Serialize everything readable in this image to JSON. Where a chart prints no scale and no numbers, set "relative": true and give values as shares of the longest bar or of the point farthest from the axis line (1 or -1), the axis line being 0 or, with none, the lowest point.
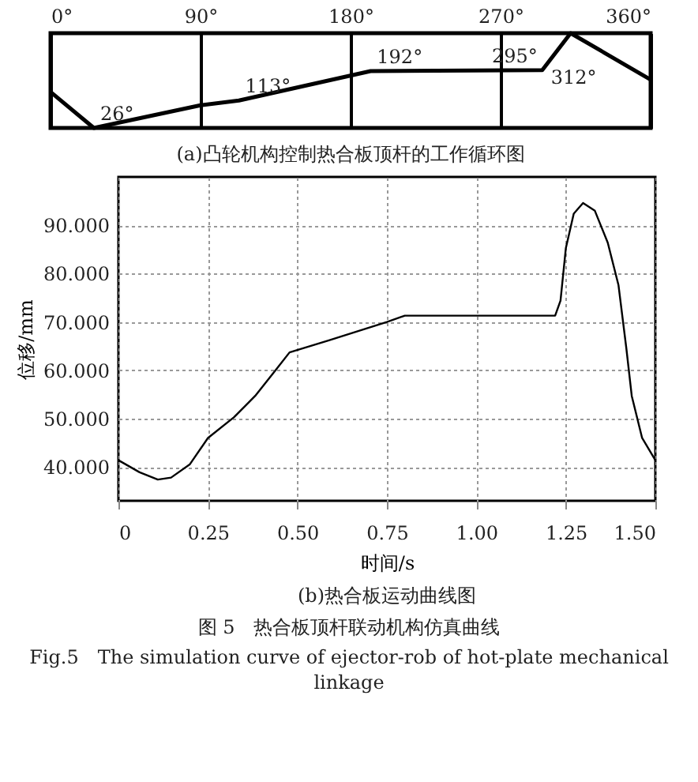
{
  "chart_data": [
    {
      "type": "line",
      "title": "(a)凸轮机构控制热合板顶杆的工作循环图",
      "relative": true,
      "x": [
        0,
        26,
        90,
        113,
        192,
        295,
        312,
        360
      ],
      "values": [
        0.38,
        0,
        0.24,
        0.29,
        0.6,
        0.61,
        1,
        0.51
      ],
      "color": "#000000",
      "xlim": [
        0,
        360
      ],
      "xticks": [
        {
          "value": 0,
          "label": "0°"
        },
        {
          "value": 90,
          "label": "90°"
        },
        {
          "value": 180,
          "label": "180°"
        },
        {
          "value": 270,
          "label": "270°"
        },
        {
          "value": 360,
          "label": "360°"
        }
      ],
      "grid": "x",
      "marker": "none",
      "line_style": "solid",
      "annotations": [
        {
          "text": "26°",
          "x": 26,
          "y": 0
        },
        {
          "text": "113°",
          "x": 113,
          "y": 0.29
        },
        {
          "text": "192°",
          "x": 192,
          "y": 0.6
        },
        {
          "text": "295°",
          "x": 295,
          "y": 0.61
        },
        {
          "text": "312°",
          "x": 312,
          "y": 1
        }
      ]
    },
    {
      "type": "line",
      "title": "(b)热合板运动曲线图",
      "xlabel": "时间/s",
      "ylabel": "位移/mm",
      "color": "#000000",
      "x": [
        0,
        0.059,
        0.11,
        0.147,
        0.199,
        0.25,
        0.323,
        0.382,
        0.441,
        0.478,
        0.588,
        0.75,
        0.8,
        1.22,
        1.235,
        1.25,
        1.272,
        1.298,
        1.331,
        1.367,
        1.397,
        1.419,
        1.434,
        1.463,
        1.5
      ],
      "values": [
        41.4,
        38.9,
        37.4,
        37.8,
        40.5,
        46.0,
        50.3,
        54.7,
        60.2,
        63.7,
        66.2,
        70.0,
        71.3,
        71.3,
        74.4,
        85.3,
        92.4,
        94.6,
        93.0,
        86.4,
        77.6,
        64.5,
        54.7,
        46.0,
        41.4
      ],
      "xlim": [
        0,
        1.5
      ],
      "xticks": [
        0,
        {
          "value": 0.25,
          "label": "0.25"
        },
        {
          "value": 0.5,
          "label": "0.50"
        },
        {
          "value": 0.75,
          "label": "0.75"
        },
        {
          "value": 1,
          "label": "1.00"
        },
        {
          "value": 1.25,
          "label": "1.25"
        },
        {
          "value": 1.5,
          "label": "1.50"
        }
      ],
      "ylim": [
        33,
        100
      ],
      "yticks": [
        {
          "value": 40,
          "label": "40.000"
        },
        {
          "value": 50,
          "label": "50.000"
        },
        {
          "value": 60,
          "label": "60.000"
        },
        {
          "value": 70,
          "label": "70.000"
        },
        {
          "value": 80,
          "label": "80.000"
        },
        {
          "value": 90,
          "label": "90.000"
        }
      ],
      "grid": true,
      "marker": "none",
      "line_style": "solid",
      "annotations": [
        "图 5　热合板顶杆联动机构仿真曲线",
        "Fig.5　The simulation curve of ejector-rob of hot-plate mechanical linkage"
      ]
    }
  ]
}
